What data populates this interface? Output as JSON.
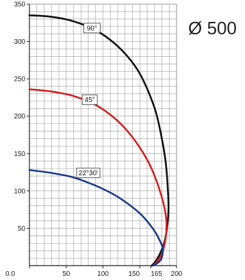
{
  "side_title": "Ø 500",
  "chart_data": {
    "type": "line",
    "xlim": [
      0,
      200
    ],
    "ylim": [
      0,
      350
    ],
    "grid": true,
    "x_ticks": [
      "0.0",
      "50",
      "100",
      "150",
      "165",
      "200"
    ],
    "x_tick_values": [
      0,
      50,
      100,
      150,
      165,
      200
    ],
    "y_ticks": [
      "50",
      "100",
      "150",
      "200",
      "250",
      "300",
      "350"
    ],
    "y_tick_values": [
      50,
      100,
      150,
      200,
      250,
      300,
      350
    ],
    "colors": {
      "90": "#111111",
      "45": "#d42020",
      "22_30": "#1a3a8c",
      "grid": "#9a9a9a"
    },
    "series": [
      {
        "name": "90°",
        "label": "90°",
        "label_at": [
          85,
          318
        ],
        "points": [
          [
            0,
            335
          ],
          [
            30,
            333
          ],
          [
            60,
            327
          ],
          [
            90,
            315
          ],
          [
            115,
            298
          ],
          [
            135,
            278
          ],
          [
            150,
            257
          ],
          [
            162,
            232
          ],
          [
            172,
            205
          ],
          [
            179,
            175
          ],
          [
            185,
            140
          ],
          [
            188,
            105
          ],
          [
            189,
            75
          ],
          [
            187,
            50
          ],
          [
            183,
            30
          ],
          [
            177,
            15
          ],
          [
            171,
            5
          ],
          [
            166,
            0
          ]
        ]
      },
      {
        "name": "45°",
        "label": "45°",
        "label_at": [
          82,
          222
        ],
        "points": [
          [
            0,
            236
          ],
          [
            30,
            233
          ],
          [
            60,
            227
          ],
          [
            90,
            215
          ],
          [
            115,
            198
          ],
          [
            135,
            178
          ],
          [
            150,
            158
          ],
          [
            162,
            138
          ],
          [
            171,
            118
          ],
          [
            178,
            98
          ],
          [
            183,
            80
          ],
          [
            186,
            62
          ],
          [
            186,
            45
          ],
          [
            184,
            30
          ],
          [
            180,
            16
          ],
          [
            174,
            6
          ],
          [
            168,
            0
          ]
        ]
      },
      {
        "name": "22°30'",
        "label": "22°30'",
        "label_at": [
          80,
          124
        ],
        "points": [
          [
            0,
            128
          ],
          [
            30,
            124
          ],
          [
            60,
            118
          ],
          [
            90,
            107
          ],
          [
            115,
            95
          ],
          [
            135,
            82
          ],
          [
            150,
            70
          ],
          [
            162,
            57
          ],
          [
            171,
            45
          ],
          [
            177,
            34
          ],
          [
            181,
            24
          ],
          [
            181,
            15
          ],
          [
            178,
            7
          ],
          [
            172,
            2
          ],
          [
            167,
            0
          ]
        ]
      }
    ]
  }
}
